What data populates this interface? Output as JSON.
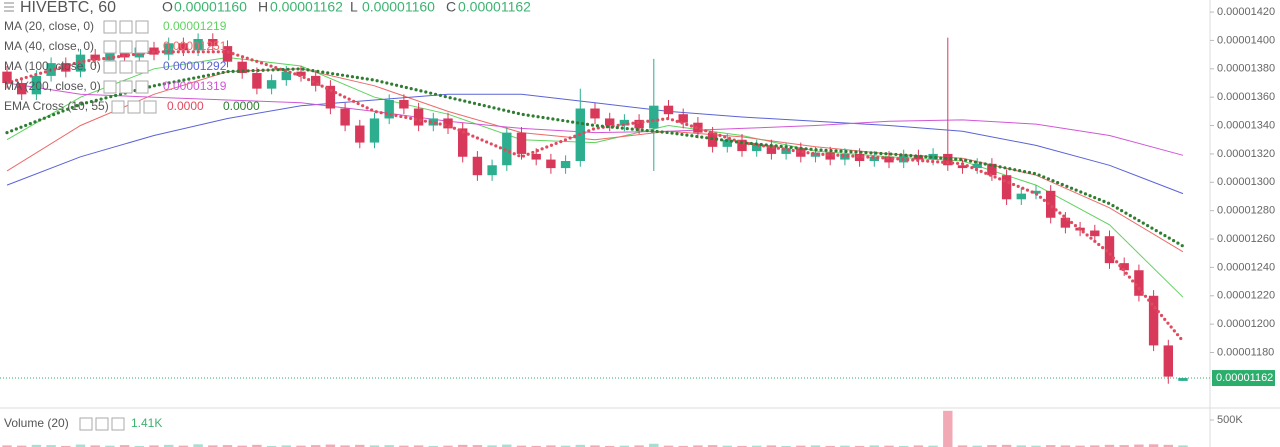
{
  "header": {
    "symbol": "HIVEBTC, 60",
    "ohlc": [
      {
        "label": "O",
        "value": "0.00001160"
      },
      {
        "label": "H",
        "value": "0.00001162"
      },
      {
        "label": "L",
        "value": "0.00001160"
      },
      {
        "label": "C",
        "value": "0.00001162"
      }
    ]
  },
  "chart_data": {
    "type": "candlestick",
    "up_color": "#2cae8f",
    "down_color": "#d8395a",
    "ylim": [
      1.143e-05,
      1.4285e-05
    ],
    "yticks": [
      {
        "value": 1.18e-05,
        "label": "0.00001180"
      },
      {
        "value": 1.2e-05,
        "label": "0.00001200"
      },
      {
        "value": 1.22e-05,
        "label": "0.00001220"
      },
      {
        "value": 1.24e-05,
        "label": "0.00001240"
      },
      {
        "value": 1.26e-05,
        "label": "0.00001260"
      },
      {
        "value": 1.28e-05,
        "label": "0.00001280"
      },
      {
        "value": 1.3e-05,
        "label": "0.00001300"
      },
      {
        "value": 1.32e-05,
        "label": "0.00001320"
      },
      {
        "value": 1.34e-05,
        "label": "0.00001340"
      },
      {
        "value": 1.36e-05,
        "label": "0.00001360"
      },
      {
        "value": 1.38e-05,
        "label": "0.00001380"
      },
      {
        "value": 1.4e-05,
        "label": "0.00001400"
      },
      {
        "value": 1.42e-05,
        "label": "0.00001420"
      }
    ],
    "open": [
      1.378e-05,
      1.37e-05,
      1.362e-05,
      1.375e-05,
      1.384e-05,
      1.378e-05,
      1.39e-05,
      1.386e-05,
      1.393e-05,
      1.388e-05,
      1.395e-05,
      1.39e-05,
      1.398e-05,
      1.393e-05,
      1.401e-05,
      1.396e-05,
      1.385e-05,
      1.377e-05,
      1.366e-05,
      1.372e-05,
      1.378e-05,
      1.375e-05,
      1.368e-05,
      1.352e-05,
      1.34e-05,
      1.328e-05,
      1.345e-05,
      1.358e-05,
      1.352e-05,
      1.34e-05,
      1.345e-05,
      1.338e-05,
      1.318e-05,
      1.305e-05,
      1.312e-05,
      1.335e-05,
      1.32e-05,
      1.316e-05,
      1.31e-05,
      1.315e-05,
      1.352e-05,
      1.345e-05,
      1.34e-05,
      1.344e-05,
      1.338e-05,
      1.354e-05,
      1.348e-05,
      1.342e-05,
      1.335e-05,
      1.325e-05,
      1.33e-05,
      1.322e-05,
      1.326e-05,
      1.32e-05,
      1.324e-05,
      1.318e-05,
      1.321e-05,
      1.316e-05,
      1.32e-05,
      1.315e-05,
      1.318e-05,
      1.314e-05,
      1.319e-05,
      1.316e-05,
      1.32e-05,
      1.312e-05,
      1.31e-05,
      1.313e-05,
      1.305e-05,
      1.288e-05,
      1.292e-05,
      1.294e-05,
      1.275e-05,
      1.268e-05,
      1.266e-05,
      1.262e-05,
      1.243e-05,
      1.238e-05,
      1.22e-05,
      1.185e-05,
      1.16e-05
    ],
    "high": [
      1.382e-05,
      1.374e-05,
      1.379e-05,
      1.388e-05,
      1.388e-05,
      1.394e-05,
      1.394e-05,
      1.397e-05,
      1.397e-05,
      1.399e-05,
      1.399e-05,
      1.402e-05,
      1.402e-05,
      1.405e-05,
      1.405e-05,
      1.4e-05,
      1.389e-05,
      1.381e-05,
      1.376e-05,
      1.382e-05,
      1.382e-05,
      1.379e-05,
      1.372e-05,
      1.356e-05,
      1.344e-05,
      1.349e-05,
      1.362e-05,
      1.362e-05,
      1.356e-05,
      1.349e-05,
      1.349e-05,
      1.342e-05,
      1.322e-05,
      1.316e-05,
      1.339e-05,
      1.339e-05,
      1.324e-05,
      1.32e-05,
      1.319e-05,
      1.366e-05,
      1.356e-05,
      1.349e-05,
      1.348e-05,
      1.348e-05,
      1.387e-05,
      1.358e-05,
      1.352e-05,
      1.346e-05,
      1.339e-05,
      1.334e-05,
      1.334e-05,
      1.33e-05,
      1.33e-05,
      1.328e-05,
      1.328e-05,
      1.325e-05,
      1.325e-05,
      1.324e-05,
      1.324e-05,
      1.322e-05,
      1.322e-05,
      1.323e-05,
      1.323e-05,
      1.324e-05,
      1.402e-05,
      1.316e-05,
      1.317e-05,
      1.317e-05,
      1.309e-05,
      1.296e-05,
      1.298e-05,
      1.298e-05,
      1.279e-05,
      1.272e-05,
      1.27e-05,
      1.266e-05,
      1.247e-05,
      1.242e-05,
      1.224e-05,
      1.189e-05,
      1.162e-05
    ],
    "low": [
      1.366e-05,
      1.358e-05,
      1.358e-05,
      1.371e-05,
      1.374e-05,
      1.374e-05,
      1.382e-05,
      1.382e-05,
      1.384e-05,
      1.384e-05,
      1.386e-05,
      1.386e-05,
      1.389e-05,
      1.389e-05,
      1.392e-05,
      1.381e-05,
      1.373e-05,
      1.362e-05,
      1.362e-05,
      1.368e-05,
      1.371e-05,
      1.364e-05,
      1.348e-05,
      1.336e-05,
      1.324e-05,
      1.324e-05,
      1.341e-05,
      1.348e-05,
      1.336e-05,
      1.336e-05,
      1.334e-05,
      1.314e-05,
      1.301e-05,
      1.301e-05,
      1.308e-05,
      1.316e-05,
      1.312e-05,
      1.306e-05,
      1.306e-05,
      1.311e-05,
      1.341e-05,
      1.336e-05,
      1.336e-05,
      1.334e-05,
      1.308e-05,
      1.344e-05,
      1.338e-05,
      1.331e-05,
      1.321e-05,
      1.321e-05,
      1.318e-05,
      1.318e-05,
      1.316e-05,
      1.316e-05,
      1.314e-05,
      1.314e-05,
      1.312e-05,
      1.312e-05,
      1.311e-05,
      1.311e-05,
      1.31e-05,
      1.31e-05,
      1.312e-05,
      1.312e-05,
      1.308e-05,
      1.306e-05,
      1.306e-05,
      1.301e-05,
      1.284e-05,
      1.284e-05,
      1.288e-05,
      1.271e-05,
      1.264e-05,
      1.262e-05,
      1.258e-05,
      1.239e-05,
      1.234e-05,
      1.216e-05,
      1.181e-05,
      1.158e-05,
      1.16e-05
    ],
    "close": [
      1.37e-05,
      1.362e-05,
      1.375e-05,
      1.384e-05,
      1.378e-05,
      1.39e-05,
      1.386e-05,
      1.393e-05,
      1.388e-05,
      1.395e-05,
      1.39e-05,
      1.398e-05,
      1.393e-05,
      1.401e-05,
      1.396e-05,
      1.385e-05,
      1.377e-05,
      1.366e-05,
      1.372e-05,
      1.378e-05,
      1.375e-05,
      1.368e-05,
      1.352e-05,
      1.34e-05,
      1.328e-05,
      1.345e-05,
      1.358e-05,
      1.352e-05,
      1.34e-05,
      1.345e-05,
      1.338e-05,
      1.318e-05,
      1.305e-05,
      1.312e-05,
      1.335e-05,
      1.32e-05,
      1.316e-05,
      1.31e-05,
      1.315e-05,
      1.352e-05,
      1.345e-05,
      1.34e-05,
      1.344e-05,
      1.338e-05,
      1.354e-05,
      1.348e-05,
      1.342e-05,
      1.335e-05,
      1.325e-05,
      1.33e-05,
      1.322e-05,
      1.326e-05,
      1.32e-05,
      1.324e-05,
      1.318e-05,
      1.321e-05,
      1.316e-05,
      1.32e-05,
      1.315e-05,
      1.318e-05,
      1.314e-05,
      1.319e-05,
      1.316e-05,
      1.32e-05,
      1.312e-05,
      1.31e-05,
      1.313e-05,
      1.305e-05,
      1.288e-05,
      1.292e-05,
      1.294e-05,
      1.275e-05,
      1.268e-05,
      1.266e-05,
      1.262e-05,
      1.243e-05,
      1.238e-05,
      1.22e-05,
      1.185e-05,
      1.163e-05,
      1.162e-05
    ],
    "lines": [
      {
        "name": "MA (20, close, 0)",
        "value_label": "0.00001219",
        "color": "#5fd35f",
        "style": "solid",
        "x": [
          0,
          5,
          10,
          15,
          20,
          25,
          30,
          35,
          40,
          45,
          50,
          55,
          60,
          65,
          70,
          75,
          80
        ],
        "values": [
          1.33e-05,
          1.36e-05,
          1.38e-05,
          1.388e-05,
          1.382e-05,
          1.36e-05,
          1.348e-05,
          1.33e-05,
          1.328e-05,
          1.34e-05,
          1.333e-05,
          1.322e-05,
          1.318e-05,
          1.315e-05,
          1.298e-05,
          1.27e-05,
          1.219e-05
        ]
      },
      {
        "name": "MA (40, close, 0)",
        "value_label": "0.00001251",
        "color": "#ee6a6a",
        "style": "solid",
        "x": [
          0,
          5,
          10,
          15,
          20,
          25,
          30,
          35,
          40,
          45,
          50,
          55,
          60,
          65,
          70,
          75,
          80
        ],
        "values": [
          1.308e-05,
          1.34e-05,
          1.362e-05,
          1.378e-05,
          1.38e-05,
          1.368e-05,
          1.35e-05,
          1.335e-05,
          1.33e-05,
          1.336e-05,
          1.332e-05,
          1.325e-05,
          1.32e-05,
          1.317e-05,
          1.305e-05,
          1.282e-05,
          1.251e-05
        ]
      },
      {
        "name": "MA (100, close, 0)",
        "value_label": "0.00001292",
        "color": "#5b63d6",
        "style": "solid",
        "x": [
          0,
          5,
          10,
          15,
          20,
          25,
          30,
          35,
          40,
          45,
          50,
          55,
          60,
          65,
          70,
          75,
          80
        ],
        "values": [
          1.298e-05,
          1.318e-05,
          1.333e-05,
          1.345e-05,
          1.354e-05,
          1.358e-05,
          1.362e-05,
          1.362e-05,
          1.356e-05,
          1.35e-05,
          1.346e-05,
          1.343e-05,
          1.34e-05,
          1.336e-05,
          1.326e-05,
          1.312e-05,
          1.292e-05
        ]
      },
      {
        "name": "MA (200, close, 0)",
        "value_label": "0.00001319",
        "color": "#d257d6",
        "style": "solid",
        "x": [
          0,
          5,
          10,
          15,
          20,
          25,
          30,
          35,
          40,
          45,
          50,
          55,
          60,
          65,
          70,
          75,
          80
        ],
        "values": [
          1.37e-05,
          1.362e-05,
          1.36e-05,
          1.358e-05,
          1.356e-05,
          1.35e-05,
          1.343e-05,
          1.338e-05,
          1.335e-05,
          1.336e-05,
          1.338e-05,
          1.34e-05,
          1.343e-05,
          1.344e-05,
          1.341e-05,
          1.333e-05,
          1.319e-05
        ]
      }
    ],
    "ema": {
      "name": "EMA Cross (10, 55)",
      "value_labels": [
        "0.0000",
        "0.0000"
      ],
      "series": [
        {
          "color": "#e04a5e",
          "style": "dotted",
          "x": [
            0,
            5,
            10,
            15,
            20,
            25,
            30,
            35,
            40,
            45,
            50,
            55,
            60,
            65,
            70,
            75,
            80
          ],
          "values": [
            1.37e-05,
            1.385e-05,
            1.392e-05,
            1.392e-05,
            1.375e-05,
            1.35e-05,
            1.34e-05,
            1.318e-05,
            1.338e-05,
            1.345e-05,
            1.328e-05,
            1.32e-05,
            1.317e-05,
            1.313e-05,
            1.292e-05,
            1.25e-05,
            1.188e-05
          ]
        },
        {
          "color": "#2e7d32",
          "style": "dotted",
          "x": [
            0,
            5,
            10,
            15,
            20,
            25,
            30,
            35,
            40,
            45,
            50,
            55,
            60,
            65,
            70,
            75,
            80
          ],
          "values": [
            1.335e-05,
            1.355e-05,
            1.368e-05,
            1.378e-05,
            1.38e-05,
            1.372e-05,
            1.36e-05,
            1.348e-05,
            1.34e-05,
            1.335e-05,
            1.328e-05,
            1.323e-05,
            1.32e-05,
            1.316e-05,
            1.306e-05,
            1.285e-05,
            1.255e-05
          ]
        }
      ]
    },
    "last_price": {
      "value": 1.162e-05,
      "label": "0.00001162",
      "color": "#2bae6b"
    },
    "volume": {
      "title": "Volume (20)",
      "value_label": "1.41K",
      "ylim": [
        0,
        685000
      ],
      "yticks": [
        {
          "value": 500000,
          "label": "500K"
        }
      ],
      "values": [
        30000,
        25000,
        40000,
        35000,
        20000,
        45000,
        30000,
        25000,
        35000,
        20000,
        30000,
        40000,
        25000,
        50000,
        30000,
        35000,
        25000,
        40000,
        20000,
        30000,
        25000,
        35000,
        45000,
        30000,
        40000,
        30000,
        35000,
        25000,
        30000,
        20000,
        25000,
        40000,
        35000,
        30000,
        45000,
        25000,
        20000,
        30000,
        25000,
        40000,
        30000,
        20000,
        25000,
        30000,
        60000,
        25000,
        20000,
        30000,
        35000,
        25000,
        20000,
        25000,
        30000,
        20000,
        25000,
        30000,
        20000,
        25000,
        20000,
        30000,
        25000,
        20000,
        30000,
        25000,
        670000,
        30000,
        25000,
        35000,
        40000,
        30000,
        25000,
        35000,
        30000,
        25000,
        30000,
        40000,
        35000,
        45000,
        50000,
        40000,
        30000
      ]
    }
  }
}
